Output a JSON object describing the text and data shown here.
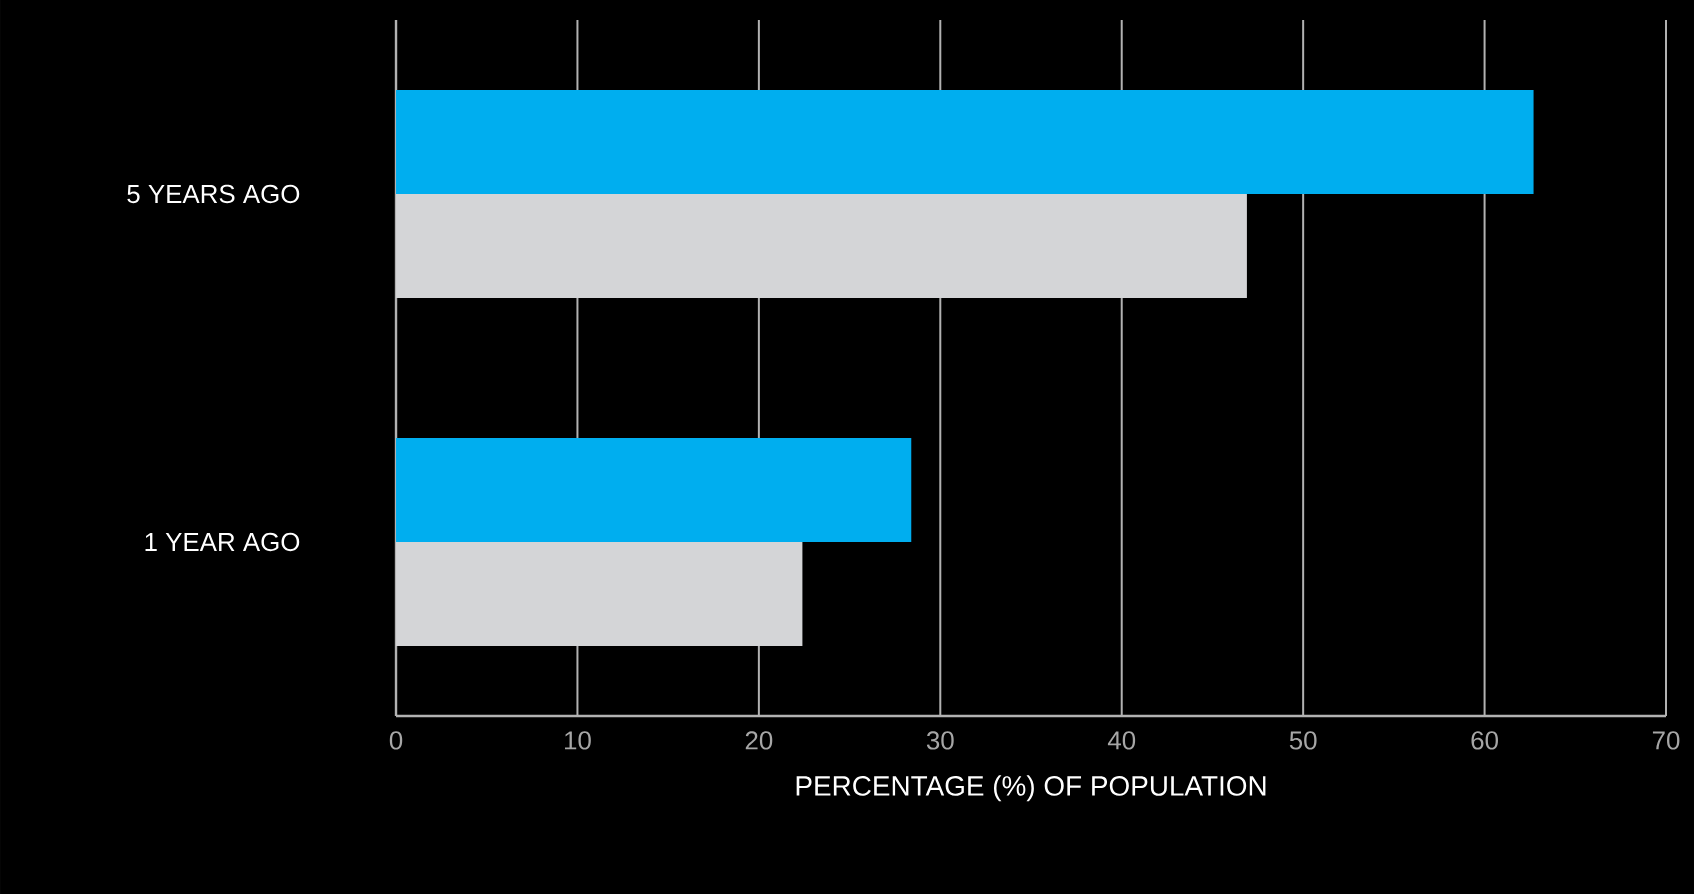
{
  "chart_data": {
    "type": "bar",
    "orientation": "horizontal",
    "categories": [
      "5 YEARS AGO",
      "1 YEAR AGO"
    ],
    "series": [
      {
        "color": "#00aeef",
        "values": [
          62.7,
          28.4
        ]
      },
      {
        "color": "#d4d5d7",
        "values": [
          46.9,
          22.4
        ]
      }
    ],
    "xlim": [
      0,
      70
    ],
    "xticks": [
      0,
      10,
      20,
      30,
      40,
      50,
      60,
      70
    ],
    "xlabel": "PERCENTAGE (%) OF POPULATION",
    "grid": "x"
  }
}
